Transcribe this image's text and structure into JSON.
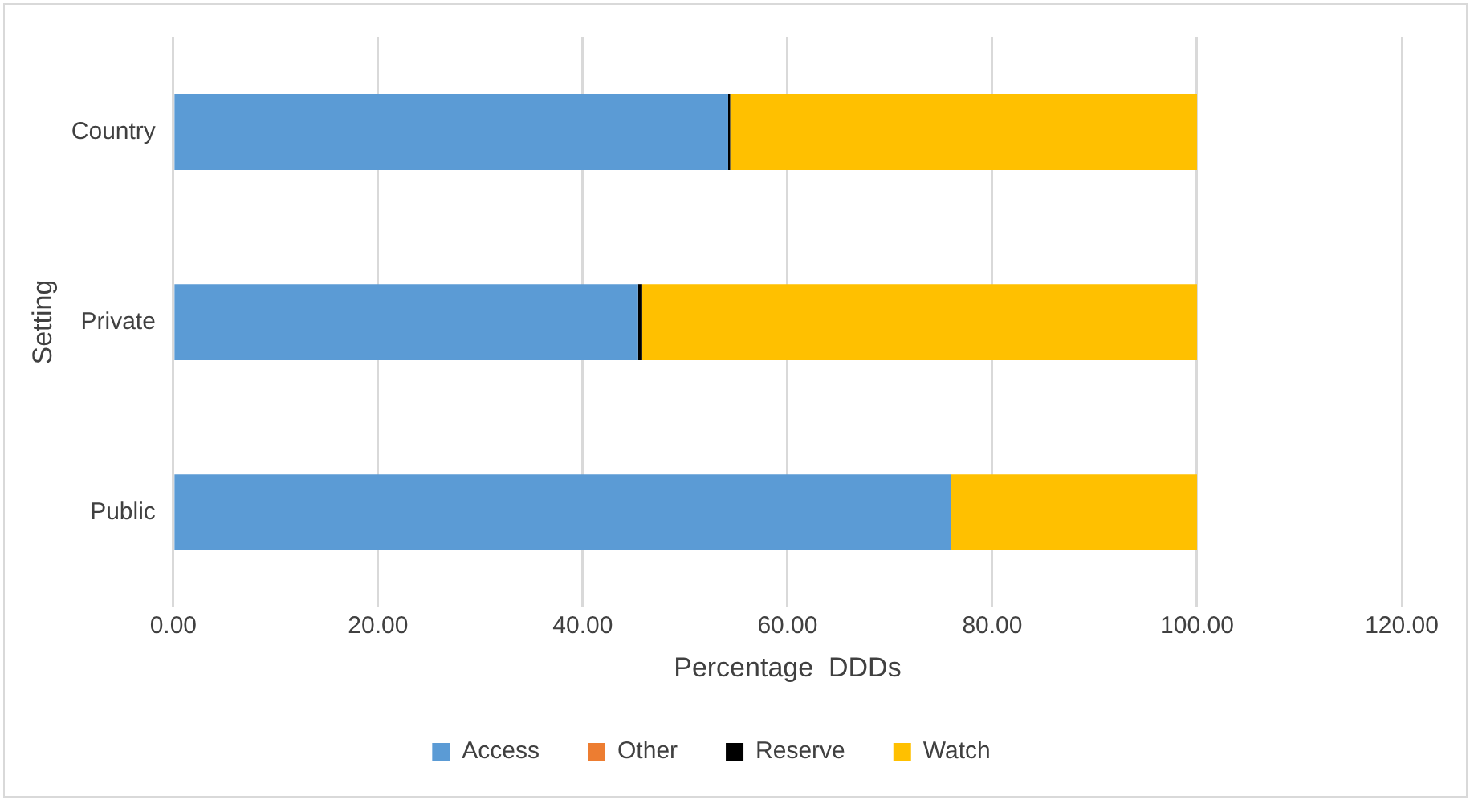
{
  "chart_data": {
    "type": "bar",
    "orientation": "horizontal",
    "stacked": true,
    "xlabel": "Percentage  DDDs",
    "ylabel": "Setting",
    "categories": [
      "Country",
      "Private",
      "Public"
    ],
    "series": [
      {
        "name": "Access",
        "color": "#5b9bd5",
        "values": [
          54.2,
          45.4,
          76.0
        ]
      },
      {
        "name": "Other",
        "color": "#ed7d31",
        "values": [
          0,
          0,
          0
        ]
      },
      {
        "name": "Reserve",
        "color": "#000000",
        "values": [
          0.2,
          0.4,
          0
        ]
      },
      {
        "name": "Watch",
        "color": "#ffc000",
        "values": [
          45.6,
          54.2,
          24.0
        ]
      }
    ],
    "xlim": [
      0,
      120
    ],
    "xticks": [
      {
        "value": 0,
        "label": "0.00"
      },
      {
        "value": 20,
        "label": "20.00"
      },
      {
        "value": 40,
        "label": "40.00"
      },
      {
        "value": 60,
        "label": "60.00"
      },
      {
        "value": 80,
        "label": "80.00"
      },
      {
        "value": 100,
        "label": "100.00"
      },
      {
        "value": 120,
        "label": "120.00"
      }
    ],
    "grid": "x",
    "legend": "bottom"
  }
}
